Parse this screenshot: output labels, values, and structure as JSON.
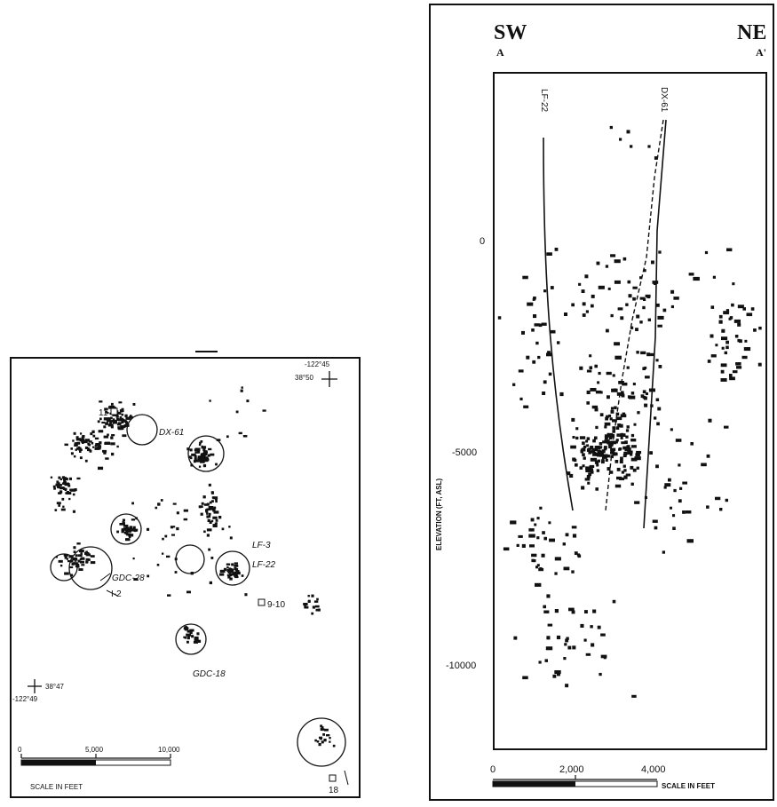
{
  "map_view": {
    "coords": {
      "ne_lon": "-122°45",
      "ne_lat": "38°50",
      "sw_lat": "38°47",
      "sw_lon": "-122°49"
    },
    "wells": {
      "w11": "11",
      "dx61": "DX-61",
      "gdc28": "GDC-28",
      "i2": "I-2",
      "lf3": "LF-3",
      "lf22": "LF-22",
      "w910": "9-10",
      "gdc18": "GDC-18",
      "w18": "18"
    },
    "scale": {
      "ticks": [
        "0",
        "5,000",
        "10,000"
      ],
      "label": "SCALE IN FEET"
    }
  },
  "section_view": {
    "sw_label": "SW",
    "ne_label": "NE",
    "a_label": "A",
    "a_prime_label": "A'",
    "well_left": "LF-22",
    "well_right": "DX-61",
    "ylabel": "ELEVATION (FT, ASL)",
    "y_ticks": [
      "0",
      "-5000",
      "-10000"
    ],
    "x_ticks": [
      "0",
      "2,000",
      "4,000"
    ],
    "scale_label": "SCALE IN FEET"
  },
  "colors": {
    "ink": "#111111",
    "paper": "#ffffff"
  }
}
